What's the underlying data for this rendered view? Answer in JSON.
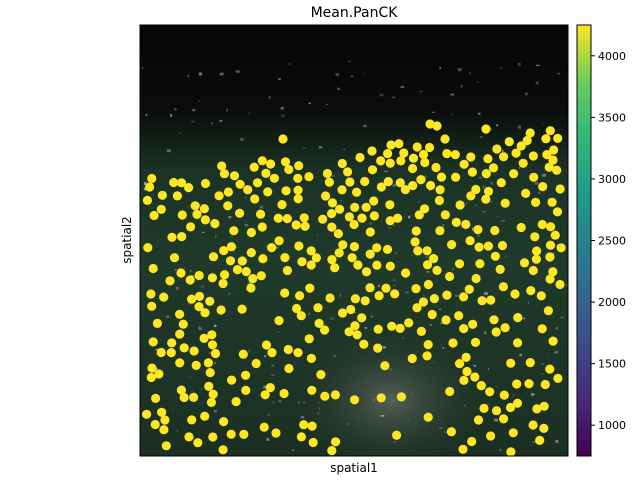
{
  "chart_data": {
    "type": "scatter",
    "title": "Mean.PanCK",
    "xlabel": "spatial1",
    "ylabel": "spatial2",
    "colorbar": {
      "colormap": "viridis",
      "range": [
        750,
        4250
      ],
      "ticks": [
        1000,
        1500,
        2000,
        2500,
        3000,
        3500,
        4000
      ],
      "tick_labels": [
        "1000",
        "1500",
        "2000",
        "2500",
        "3000",
        "3500",
        "4000"
      ]
    },
    "point_color": "#fde725",
    "point_value_approx": 4250,
    "background": "fluorescence tissue image (dark green/grey, black upper region)",
    "grid": false,
    "x_ticks": [],
    "y_ticks": []
  }
}
